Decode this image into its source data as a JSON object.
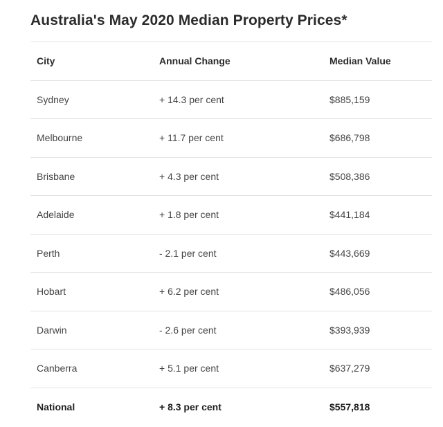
{
  "title": "Australia's May 2020 Median Property Prices*",
  "table": {
    "headers": [
      "City",
      "Annual Change",
      "Median Value"
    ],
    "rows": [
      [
        "Sydney",
        "+ 14.3 per cent",
        "$885,159"
      ],
      [
        "Melbourne",
        "+ 11.7 per cent",
        "$686,798"
      ],
      [
        "Brisbane",
        "+ 4.3 per cent",
        "$508,386"
      ],
      [
        "Adelaide",
        "+ 1.8 per cent",
        "$441,184"
      ],
      [
        "Perth",
        "- 2.1 per cent",
        "$443,669"
      ],
      [
        "Hobart",
        "+ 6.2 per cent",
        "$486,056"
      ],
      [
        "Darwin",
        "- 2.6 per cent",
        "$393,939"
      ],
      [
        "Canberra",
        "+ 5.1 per cent",
        "$637,279"
      ]
    ],
    "total": [
      "National",
      "+ 8.3 per cent",
      "$557,818"
    ]
  }
}
